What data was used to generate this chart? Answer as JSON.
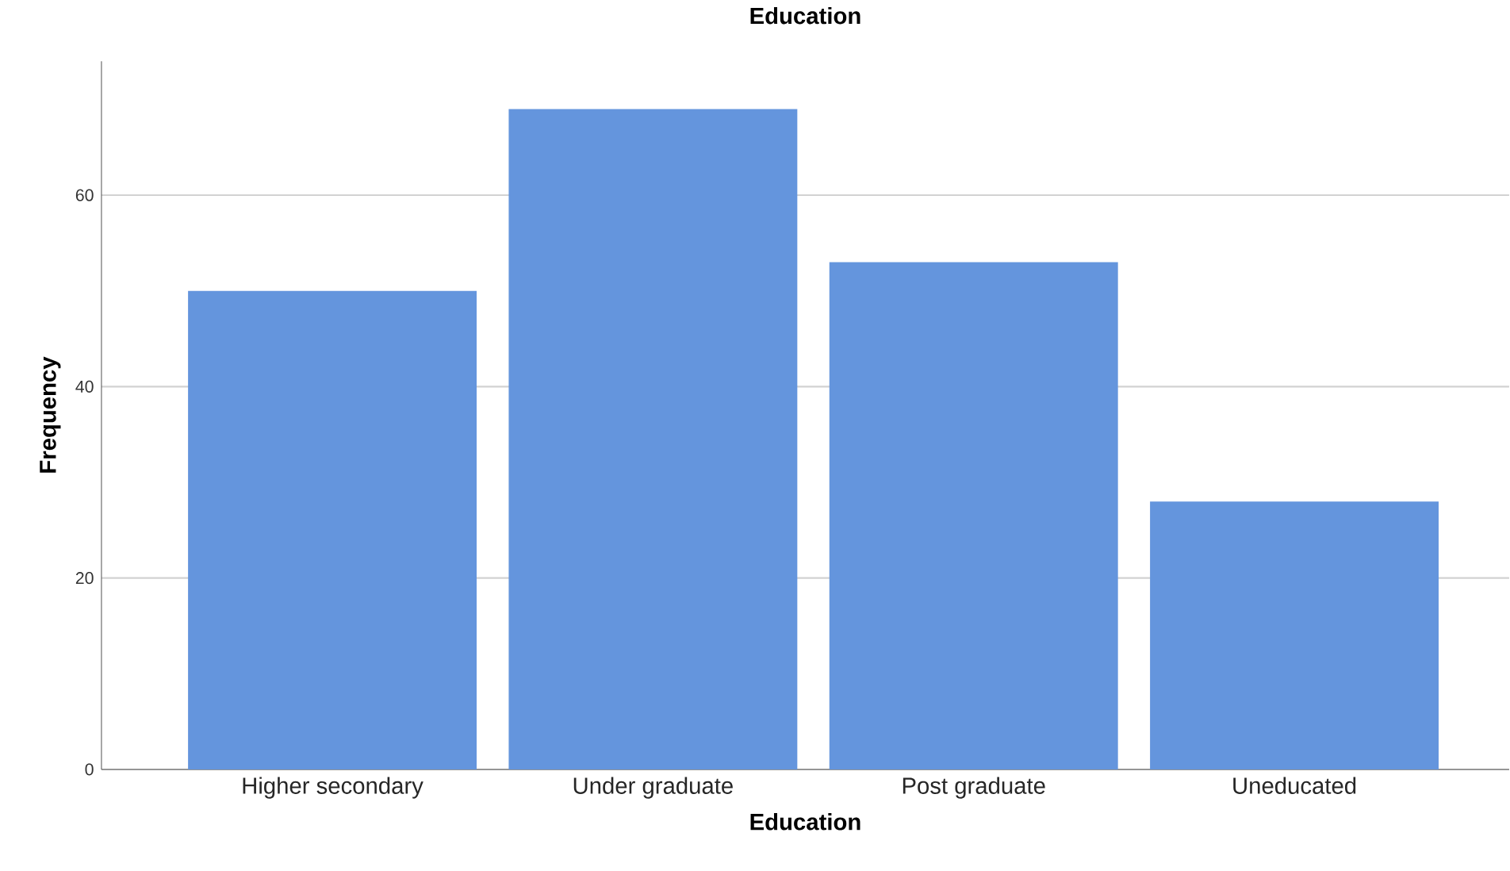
{
  "chart_data": {
    "type": "bar",
    "title": "Education",
    "xlabel": "Education",
    "ylabel": "Frequency",
    "categories": [
      "Higher secondary",
      "Under graduate",
      "Post graduate",
      "Uneducated"
    ],
    "values": [
      50,
      69,
      53,
      28
    ],
    "color": "#6495dd",
    "ylim": [
      0,
      74
    ],
    "yticks": [
      0,
      20,
      40,
      60
    ],
    "grid": "y"
  }
}
